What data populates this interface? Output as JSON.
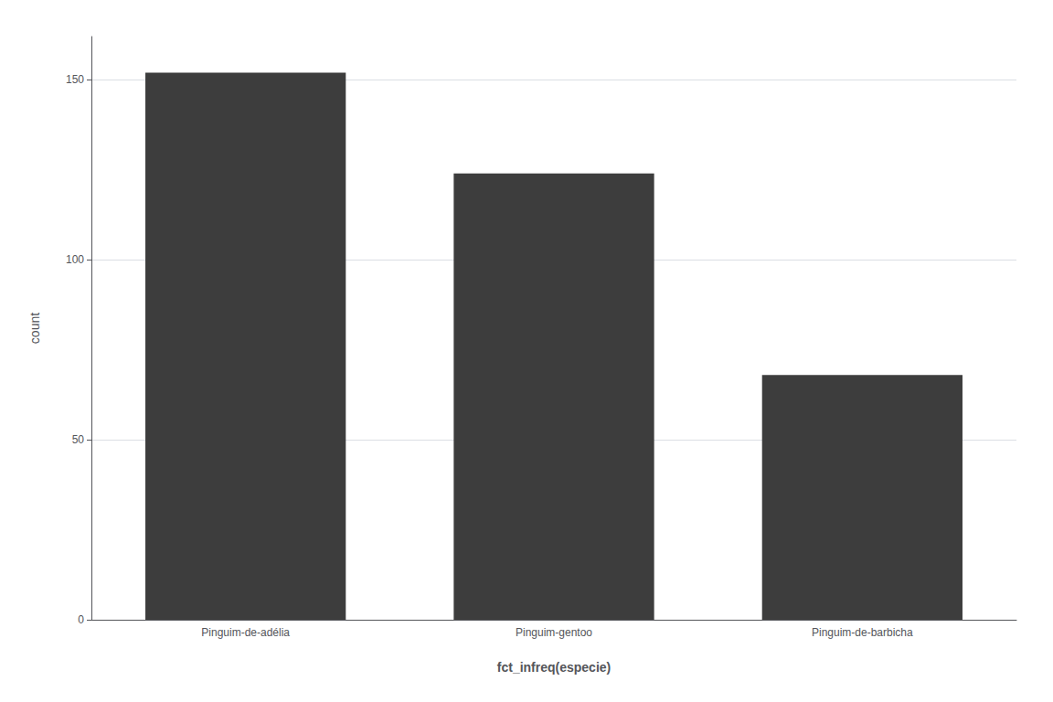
{
  "chart_data": {
    "type": "bar",
    "categories": [
      "Pinguim-de-adélia",
      "Pinguim-gentoo",
      "Pinguim-de-barbicha"
    ],
    "values": [
      152,
      124,
      68
    ],
    "color": "#3d3d3d",
    "xlabel": "fct_infreq(especie)",
    "ylabel": "count",
    "ylim": [
      0,
      162
    ],
    "yticks": [
      0,
      50,
      100,
      150
    ],
    "grid": true
  }
}
